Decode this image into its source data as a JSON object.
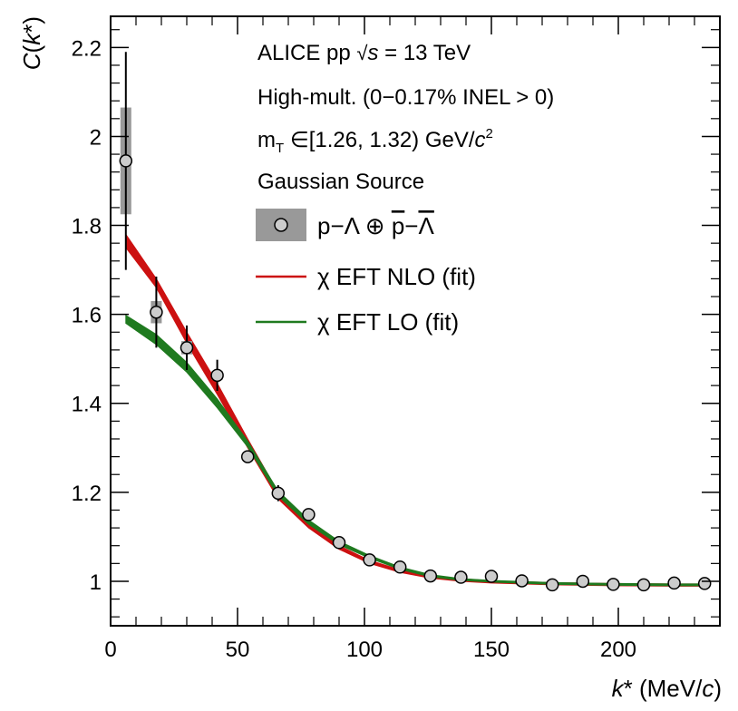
{
  "chart_data": {
    "type": "scatter",
    "xlabel": "k* (MeV/c)",
    "ylabel": "C(k*)",
    "xlim": [
      0,
      240
    ],
    "ylim": [
      0.9,
      2.27
    ],
    "x_ticks": [
      0,
      50,
      100,
      150,
      200
    ],
    "y_ticks": [
      1,
      1.2,
      1.4,
      1.6,
      1.8,
      2,
      2.2
    ],
    "x_tick_labels": [
      "0",
      "50",
      "100",
      "150",
      "200"
    ],
    "y_tick_labels": [
      "1",
      "1.2",
      "1.4",
      "1.6",
      "1.8",
      "2",
      "2.2"
    ],
    "annotations": [
      "ALICE pp √s = 13 TeV",
      "High-mult. (0–0.17% INEL > 0)",
      "mT ∈[1.26, 1.32) GeV/c²",
      "Gaussian Source"
    ],
    "legend": {
      "data_label": "p−Λ ⊕ p̅−Λ̅",
      "nlo_label": "χ EFT NLO (fit)",
      "lo_label": "χ EFT LO (fit)"
    },
    "data_points": {
      "x": [
        6,
        18,
        30,
        42,
        54,
        66,
        78,
        90,
        102,
        114,
        126,
        138,
        150,
        162,
        174,
        186,
        198,
        210,
        222,
        234
      ],
      "y": [
        1.945,
        1.605,
        1.525,
        1.463,
        1.28,
        1.198,
        1.15,
        1.087,
        1.048,
        1.032,
        1.012,
        1.009,
        1.011,
        1.001,
        0.992,
        1.0,
        0.993,
        0.992,
        0.996,
        0.995
      ],
      "stat_err": [
        0.245,
        0.08,
        0.05,
        0.035,
        0.012,
        0.018,
        0.013,
        0.009,
        0.008,
        0.007,
        0.006,
        0.006,
        0.006,
        0.005,
        0.005,
        0.005,
        0.005,
        0.005,
        0.005,
        0.005
      ],
      "syst_err": [
        0.12,
        0.025,
        0.015,
        0.01,
        0.008,
        0.007,
        0.006,
        0.005,
        0.004,
        0.004,
        0.004,
        0.004,
        0.004,
        0.003,
        0.003,
        0.003,
        0.003,
        0.003,
        0.003,
        0.003
      ]
    },
    "series": [
      {
        "name": "χ EFT NLO (fit)",
        "color": "#cc1111",
        "x": [
          6,
          18,
          30,
          42,
          54,
          66,
          78,
          90,
          102,
          114,
          126,
          138,
          150,
          174,
          198,
          222,
          234
        ],
        "lo": [
          1.75,
          1.66,
          1.535,
          1.42,
          1.3,
          1.185,
          1.12,
          1.072,
          1.04,
          1.02,
          1.007,
          1.0,
          0.996,
          0.992,
          0.99,
          0.989,
          0.989
        ],
        "hi": [
          1.78,
          1.68,
          1.56,
          1.445,
          1.32,
          1.2,
          1.132,
          1.08,
          1.047,
          1.026,
          1.013,
          1.006,
          1.001,
          0.997,
          0.995,
          0.994,
          0.994
        ]
      },
      {
        "name": "χ EFT LO (fit)",
        "color": "#1f7a1f",
        "x": [
          6,
          18,
          30,
          42,
          54,
          66,
          78,
          90,
          102,
          114,
          126,
          138,
          150,
          174,
          198,
          222,
          234
        ],
        "lo": [
          1.58,
          1.532,
          1.47,
          1.39,
          1.302,
          1.192,
          1.128,
          1.082,
          1.052,
          1.027,
          1.01,
          1.002,
          0.998,
          0.993,
          0.991,
          0.99,
          0.99
        ],
        "hi": [
          1.598,
          1.555,
          1.492,
          1.41,
          1.315,
          1.203,
          1.138,
          1.09,
          1.058,
          1.032,
          1.015,
          1.006,
          1.002,
          0.997,
          0.995,
          0.994,
          0.994
        ]
      }
    ],
    "colors": {
      "nlo": "#cc1111",
      "lo": "#1f7a1f",
      "syst_box": "#999999",
      "marker_fill": "#cccccc"
    }
  }
}
